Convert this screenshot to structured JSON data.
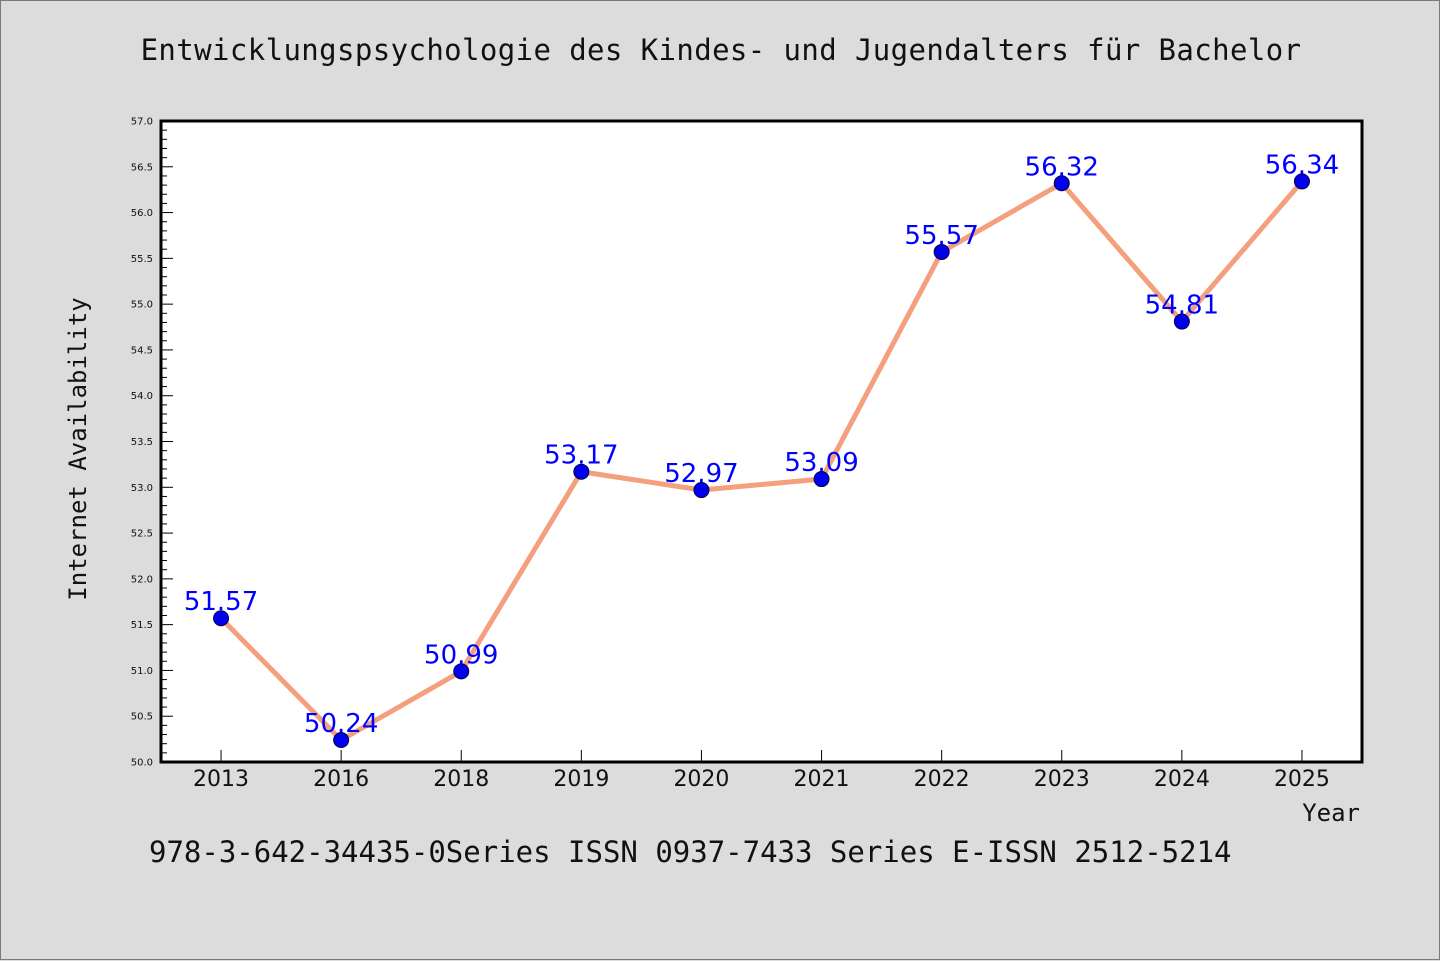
{
  "chart_data": {
    "type": "line",
    "title": "Entwicklungspsychologie des Kindes- und Jugendalters für Bachelor",
    "xlabel": "Year",
    "ylabel": "Internet Availability",
    "categories": [
      "2013",
      "2016",
      "2018",
      "2019",
      "2020",
      "2021",
      "2022",
      "2023",
      "2024",
      "2025"
    ],
    "values": [
      51.57,
      50.24,
      50.99,
      53.17,
      52.97,
      53.09,
      55.57,
      56.32,
      54.81,
      56.34
    ],
    "data_labels": [
      "51.57",
      "50.24",
      "50.99",
      "53.17",
      "52.97",
      "53.09",
      "55.57",
      "56.32",
      "54.81",
      "56.34"
    ],
    "ylim": [
      50.0,
      57.0
    ],
    "yticks": [
      "50.0",
      "50.5",
      "51.0",
      "51.5",
      "52.0",
      "52.5",
      "53.0",
      "53.5",
      "54.0",
      "54.5",
      "55.0",
      "55.5",
      "56.0",
      "56.5",
      "57.0"
    ],
    "grid": false,
    "legend": "none",
    "colors": {
      "line": "#f4a07f",
      "marker": "#0000ee",
      "data_label": "#0000ff"
    }
  },
  "footer": {
    "caption": "978-3-642-34435-0Series ISSN 0937-7433 Series E-ISSN 2512-5214"
  }
}
